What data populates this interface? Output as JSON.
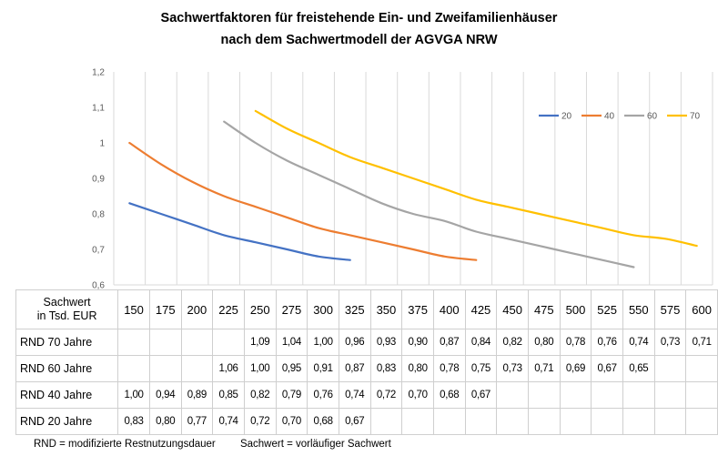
{
  "title_line1": "Sachwertfaktoren für freistehende Ein- und Zweifamilienhäuser",
  "title_line2": "nach dem Sachwertmodell der AGVGA NRW",
  "chart_data": {
    "type": "line",
    "title": "Sachwertfaktoren für freistehende Ein- und Zweifamilienhäuser nach dem Sachwertmodell der AGVGA NRW",
    "x": [
      150,
      175,
      200,
      225,
      250,
      275,
      300,
      325,
      350,
      375,
      400,
      425,
      450,
      475,
      500,
      525,
      550,
      575,
      600
    ],
    "ylim": [
      0.6,
      1.2
    ],
    "yticks": [
      "0,6",
      "0,7",
      "0,8",
      "0,9",
      "1",
      "1,1",
      "1,2"
    ],
    "grid": "vertical",
    "legend_position": "top-right",
    "series": [
      {
        "name": "20",
        "color": "#4472C4",
        "values": [
          0.83,
          0.8,
          0.77,
          0.74,
          0.72,
          0.7,
          0.68,
          0.67,
          null,
          null,
          null,
          null,
          null,
          null,
          null,
          null,
          null,
          null,
          null
        ]
      },
      {
        "name": "40",
        "color": "#ED7D31",
        "values": [
          1.0,
          0.94,
          0.89,
          0.85,
          0.82,
          0.79,
          0.76,
          0.74,
          0.72,
          0.7,
          0.68,
          0.67,
          null,
          null,
          null,
          null,
          null,
          null,
          null
        ]
      },
      {
        "name": "60",
        "color": "#A5A5A5",
        "values": [
          null,
          null,
          null,
          1.06,
          1.0,
          0.95,
          0.91,
          0.87,
          0.83,
          0.8,
          0.78,
          0.75,
          0.73,
          0.71,
          0.69,
          0.67,
          0.65,
          null,
          null
        ]
      },
      {
        "name": "70",
        "color": "#FFC000",
        "values": [
          null,
          null,
          null,
          null,
          1.09,
          1.04,
          1.0,
          0.96,
          0.93,
          0.9,
          0.87,
          0.84,
          0.82,
          0.8,
          0.78,
          0.76,
          0.74,
          0.73,
          0.71
        ]
      }
    ]
  },
  "table": {
    "header_label_line1": "Sachwert",
    "header_label_line2": "in Tsd. EUR",
    "columns": [
      "150",
      "175",
      "200",
      "225",
      "250",
      "275",
      "300",
      "325",
      "350",
      "375",
      "400",
      "425",
      "450",
      "475",
      "500",
      "525",
      "550",
      "575",
      "600"
    ],
    "rows": [
      {
        "label": "RND 70 Jahre",
        "cells": [
          "",
          "",
          "",
          "",
          "1,09",
          "1,04",
          "1,00",
          "0,96",
          "0,93",
          "0,90",
          "0,87",
          "0,84",
          "0,82",
          "0,80",
          "0,78",
          "0,76",
          "0,74",
          "0,73",
          "0,71"
        ]
      },
      {
        "label": "RND 60 Jahre",
        "cells": [
          "",
          "",
          "",
          "1,06",
          "1,00",
          "0,95",
          "0,91",
          "0,87",
          "0,83",
          "0,80",
          "0,78",
          "0,75",
          "0,73",
          "0,71",
          "0,69",
          "0,67",
          "0,65",
          "",
          ""
        ]
      },
      {
        "label": "RND 40 Jahre",
        "cells": [
          "1,00",
          "0,94",
          "0,89",
          "0,85",
          "0,82",
          "0,79",
          "0,76",
          "0,74",
          "0,72",
          "0,70",
          "0,68",
          "0,67",
          "",
          "",
          "",
          "",
          "",
          "",
          ""
        ]
      },
      {
        "label": "RND 20 Jahre",
        "cells": [
          "0,83",
          "0,80",
          "0,77",
          "0,74",
          "0,72",
          "0,70",
          "0,68",
          "0,67",
          "",
          "",
          "",
          "",
          "",
          "",
          "",
          "",
          "",
          "",
          ""
        ]
      }
    ]
  },
  "footer": {
    "rnd_note": "RND = modifizierte Restnutzungsdauer",
    "sachwert_note": "Sachwert = vorläufiger Sachwert"
  }
}
